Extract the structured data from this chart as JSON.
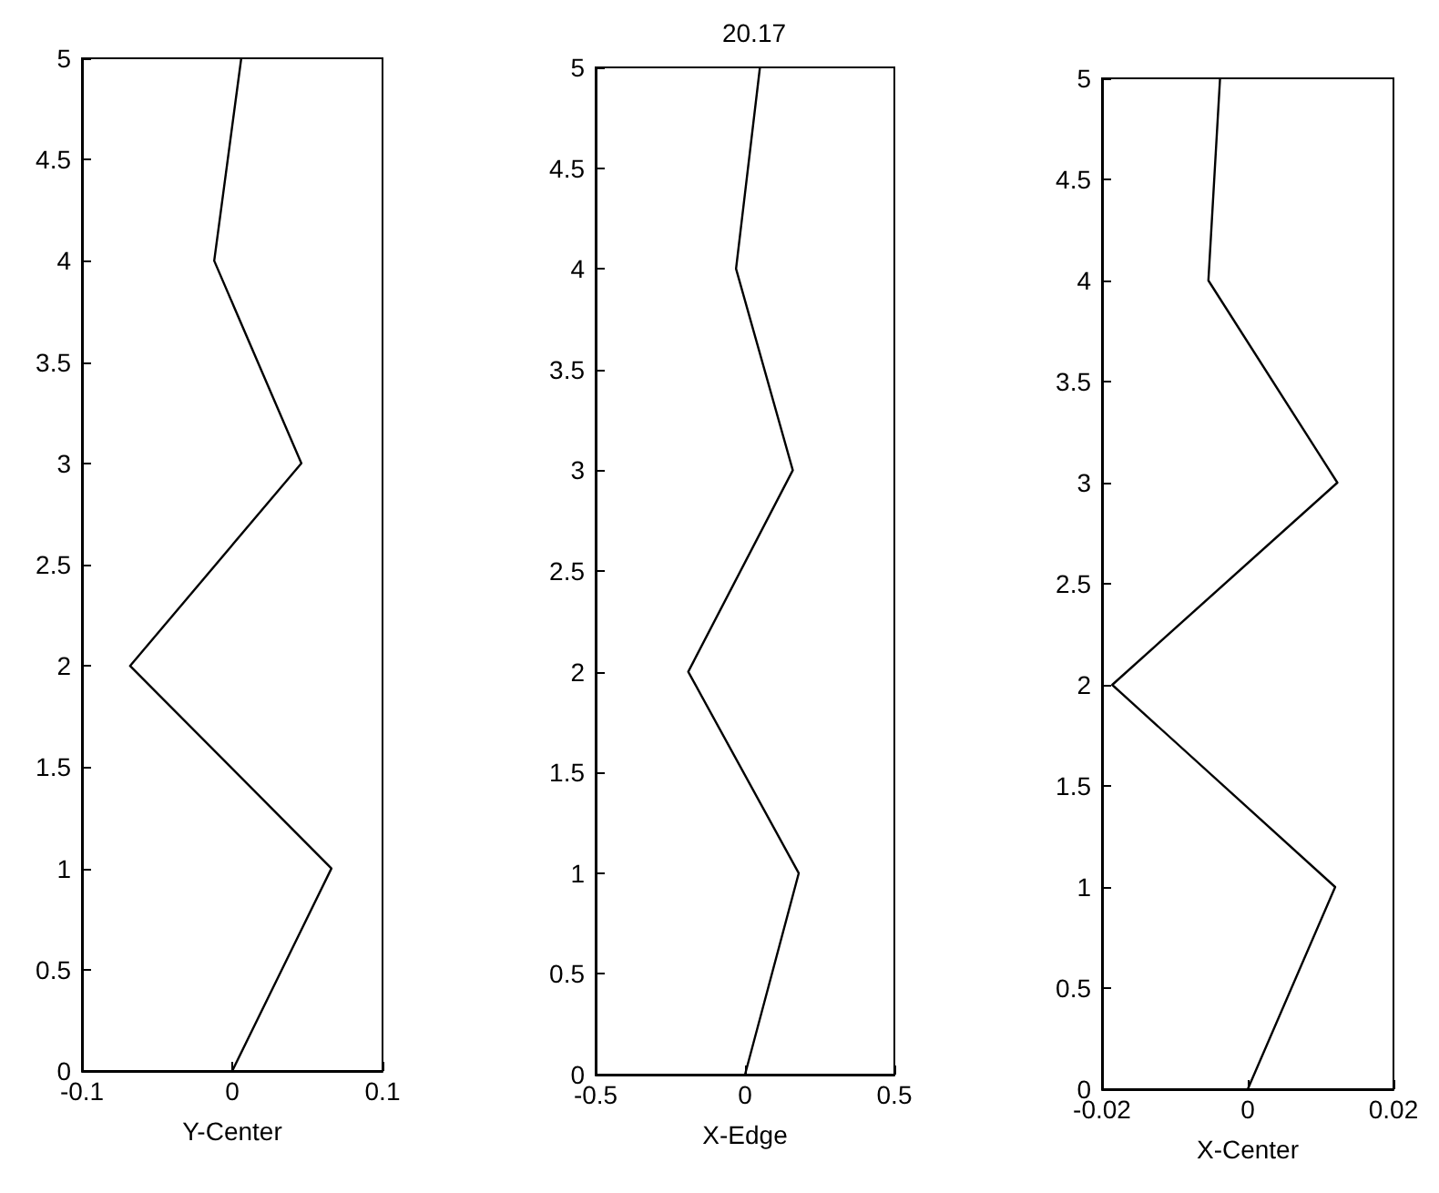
{
  "chart_data": [
    {
      "type": "line",
      "xlabel": "Y-Center",
      "xlim": [
        -0.1,
        0.1
      ],
      "xticks": [
        -0.1,
        0,
        0.1
      ],
      "ylim": [
        0,
        5
      ],
      "yticks": [
        0,
        0.5,
        1,
        1.5,
        2,
        2.5,
        3,
        3.5,
        4,
        4.5,
        5
      ],
      "marker": "none",
      "grid": false,
      "series": [
        {
          "color": "#000000",
          "x": [
            0,
            0.066,
            -0.068,
            0.046,
            -0.012,
            0.006
          ],
          "values": [
            0,
            1,
            2,
            3,
            4,
            5
          ]
        }
      ]
    },
    {
      "type": "line",
      "title": "20.17",
      "xlabel": "X-Edge",
      "xlim": [
        -0.5,
        0.5
      ],
      "xticks": [
        -0.5,
        0,
        0.5
      ],
      "ylim": [
        0,
        5
      ],
      "yticks": [
        0,
        0.5,
        1,
        1.5,
        2,
        2.5,
        3,
        3.5,
        4,
        4.5,
        5
      ],
      "marker": "none",
      "grid": false,
      "series": [
        {
          "color": "#000000",
          "x": [
            0,
            0.18,
            -0.19,
            0.16,
            -0.03,
            0.05
          ],
          "values": [
            0,
            1,
            2,
            3,
            4,
            5
          ]
        }
      ]
    },
    {
      "type": "line",
      "xlabel": "X-Center",
      "xlim": [
        -0.02,
        0.02
      ],
      "xticks": [
        -0.02,
        0,
        0.02
      ],
      "ylim": [
        0,
        5
      ],
      "yticks": [
        0,
        0.5,
        1,
        1.5,
        2,
        2.5,
        3,
        3.5,
        4,
        4.5,
        5
      ],
      "marker": "none",
      "grid": false,
      "series": [
        {
          "color": "#000000",
          "x": [
            0,
            0.012,
            -0.0186,
            0.0123,
            -0.0054,
            -0.0038
          ],
          "values": [
            0,
            1,
            2,
            3,
            4,
            5
          ]
        }
      ]
    }
  ]
}
